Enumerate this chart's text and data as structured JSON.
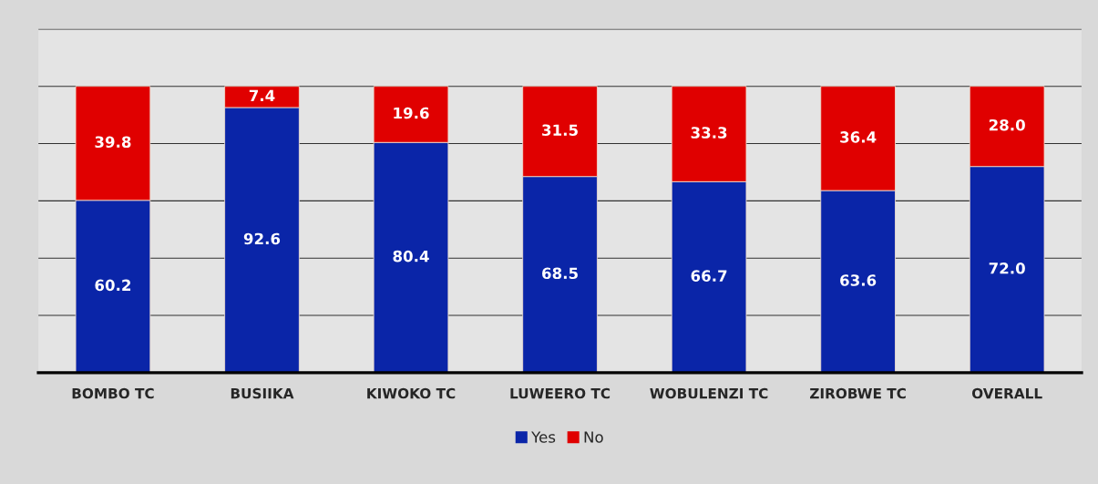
{
  "chart_data": {
    "type": "bar",
    "stacked": true,
    "categories": [
      "BOMBO TC",
      "BUSIIKA",
      "KIWOKO TC",
      "LUWEERO TC",
      "WOBULENZI TC",
      "ZIROBWE TC",
      "OVERALL"
    ],
    "series": [
      {
        "name": "Yes",
        "color": "#0a25a8",
        "values": [
          60.2,
          92.6,
          80.4,
          68.5,
          66.7,
          63.6,
          72.0
        ],
        "value_labels": [
          "60.2",
          "92.6",
          "80.4",
          "68.5",
          "66.7",
          "63.6",
          "72.0"
        ]
      },
      {
        "name": "No",
        "color": "#e00000",
        "values": [
          39.8,
          7.4,
          19.6,
          31.5,
          33.3,
          36.4,
          28.0
        ],
        "value_labels": [
          "39.8",
          "7.4",
          "19.6",
          "31.5",
          "33.3",
          "36.4",
          "28.0"
        ]
      }
    ],
    "ylim": [
      0,
      120
    ],
    "yticks": [
      {
        "value": 0,
        "label": null
      },
      {
        "value": 20,
        "label": null
      },
      {
        "value": 40,
        "label": null
      },
      {
        "value": 60,
        "label": null
      },
      {
        "value": 80,
        "label": null
      },
      {
        "value": 100,
        "label": null
      },
      {
        "value": 120,
        "label": null
      }
    ],
    "grid": "y",
    "legend": "bottom",
    "tick_labels": "x"
  }
}
